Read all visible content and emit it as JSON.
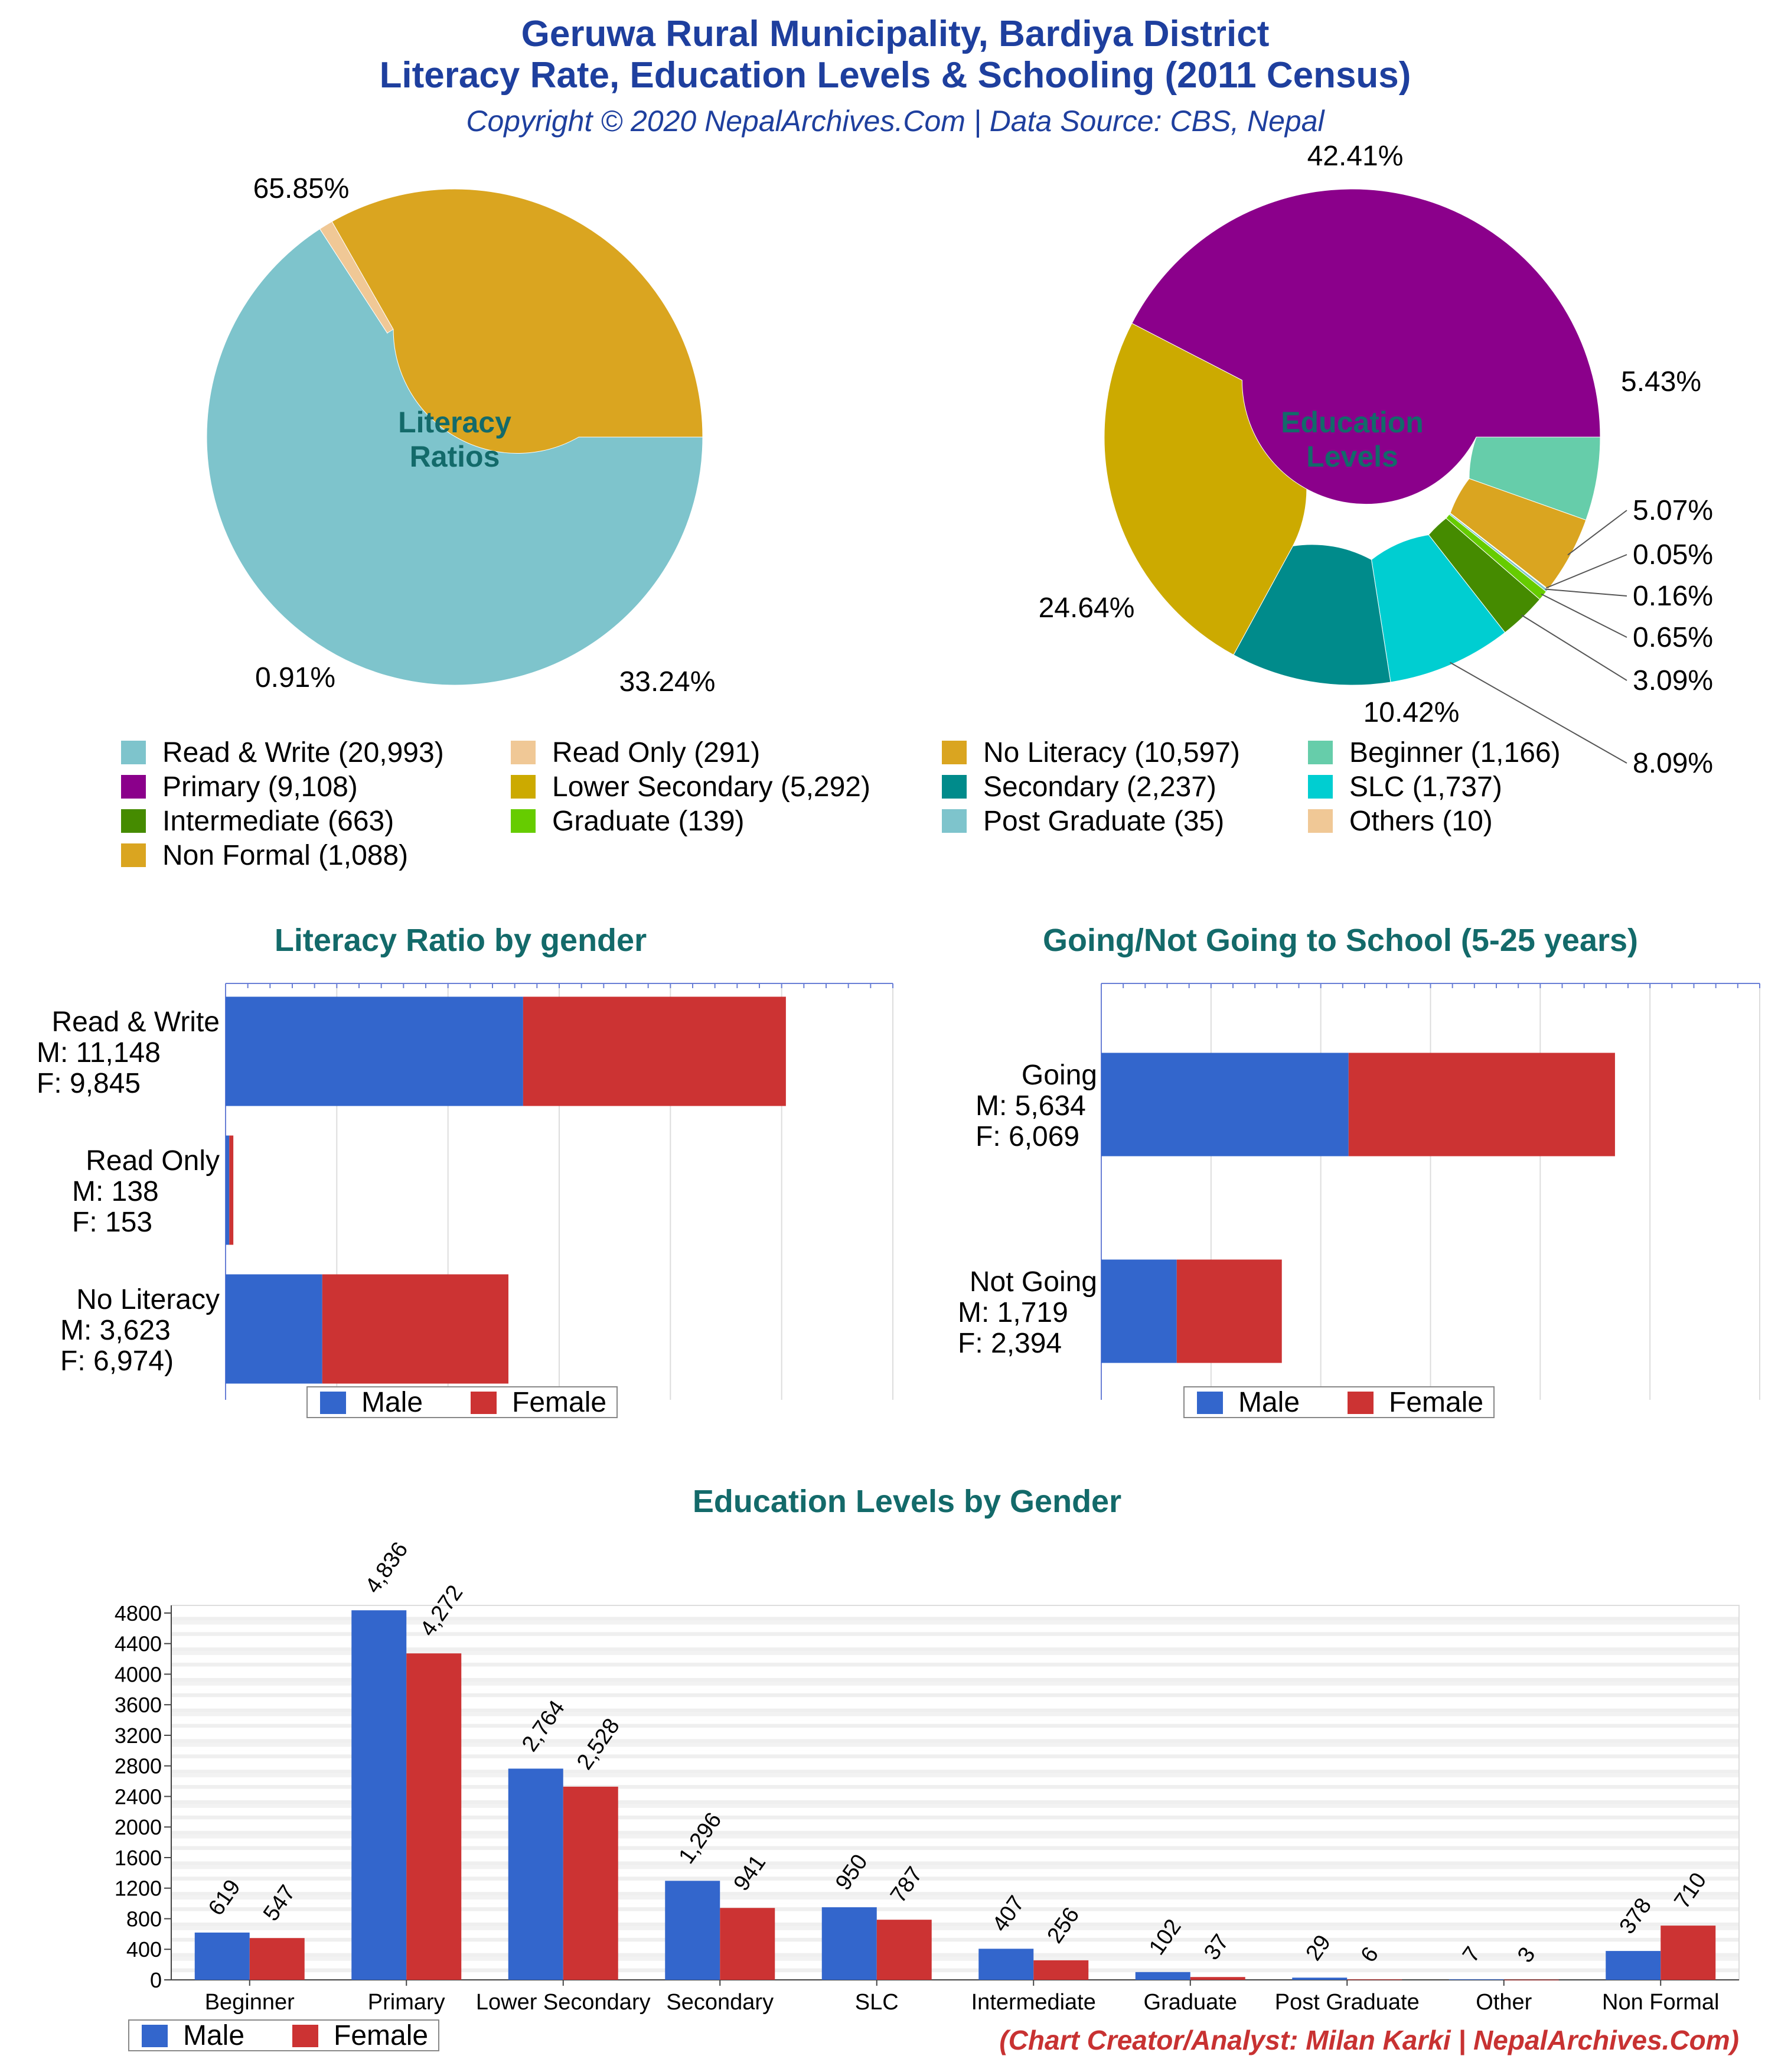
{
  "header": {
    "title_line1": "Geruwa Rural Municipality, Bardiya District",
    "title_line2": "Literacy Rate, Education Levels & Schooling (2011 Census)",
    "subtitle": "Copyright © 2020 NepalArchives.Com | Data Source: CBS, Nepal"
  },
  "footer": {
    "credit": "(Chart Creator/Analyst: Milan Karki | NepalArchives.Com)"
  },
  "colors": {
    "male": "#3366cc",
    "female": "#cc3333",
    "title": "#1e3f9e",
    "section": "#136a6a"
  },
  "chart_data": [
    {
      "type": "pie",
      "center_label": [
        "Literacy",
        "Ratios"
      ],
      "slices": [
        {
          "label": "Read & Write",
          "value": 20993,
          "percent_label": "65.85%",
          "color": "#7ec4cc"
        },
        {
          "label": "Read Only",
          "value": 291,
          "percent_label": "0.91%",
          "color": "#f0c896"
        },
        {
          "label": "No Literacy",
          "value": 10597,
          "percent_label": "33.24%",
          "color": "#daa520"
        }
      ]
    },
    {
      "type": "pie",
      "center_label": [
        "Education",
        "Levels"
      ],
      "slices": [
        {
          "label": "Beginner",
          "value": 1166,
          "percent_label": "5.43%",
          "color": "#66cdaa"
        },
        {
          "label": "Non Formal",
          "value": 1088,
          "percent_label": "5.07%",
          "color": "#daa520"
        },
        {
          "label": "Others",
          "value": 10,
          "percent_label": "0.05%",
          "color": "#f0c896"
        },
        {
          "label": "Post Graduate",
          "value": 35,
          "percent_label": "0.16%",
          "color": "#7ec4cc"
        },
        {
          "label": "Graduate",
          "value": 139,
          "percent_label": "0.65%",
          "color": "#66cc00"
        },
        {
          "label": "Intermediate",
          "value": 663,
          "percent_label": "3.09%",
          "color": "#458b00"
        },
        {
          "label": "SLC",
          "value": 1737,
          "percent_label": "8.09%",
          "color": "#00ced1"
        },
        {
          "label": "Secondary",
          "value": 2237,
          "percent_label": "10.42%",
          "color": "#008b8b"
        },
        {
          "label": "Lower Secondary",
          "value": 5292,
          "percent_label": "24.64%",
          "color": "#ccaa00"
        },
        {
          "label": "Primary",
          "value": 9108,
          "percent_label": "42.41%",
          "color": "#8b008b"
        }
      ]
    },
    {
      "type": "bar",
      "orientation": "horizontal-stacked",
      "title": "Literacy Ratio by gender",
      "categories": [
        "Read & Write",
        "Read Only",
        "No Literacy"
      ],
      "category_labels": [
        [
          "Read & Write",
          "M: 11,148",
          "F: 9,845"
        ],
        [
          "Read Only",
          "M: 138",
          "F: 153"
        ],
        [
          "No Literacy",
          "M: 3,623",
          "F: 6,974)"
        ]
      ],
      "series": [
        {
          "name": "Male",
          "values": [
            11148,
            138,
            3623
          ]
        },
        {
          "name": "Female",
          "values": [
            9845,
            153,
            6974
          ]
        }
      ],
      "xlim": [
        0,
        25000
      ],
      "legend": "bottom"
    },
    {
      "type": "bar",
      "orientation": "horizontal-stacked",
      "title": "Going/Not Going to School (5-25 years)",
      "categories": [
        "Going",
        "Not Going"
      ],
      "category_labels": [
        [
          "Going",
          "M: 5,634",
          "F: 6,069"
        ],
        [
          "Not Going",
          "M: 1,719",
          "F: 2,394"
        ]
      ],
      "series": [
        {
          "name": "Male",
          "values": [
            5634,
            1719
          ]
        },
        {
          "name": "Female",
          "values": [
            6069,
            2394
          ]
        }
      ],
      "xlim": [
        0,
        15000
      ],
      "legend": "bottom"
    },
    {
      "type": "bar",
      "orientation": "vertical-grouped",
      "title": "Education Levels by Gender",
      "categories": [
        "Beginner",
        "Primary",
        "Lower Secondary",
        "Secondary",
        "SLC",
        "Intermediate",
        "Graduate",
        "Post Graduate",
        "Other",
        "Non Formal"
      ],
      "series": [
        {
          "name": "Male",
          "values": [
            619,
            4836,
            2764,
            1296,
            950,
            407,
            102,
            29,
            7,
            378
          ],
          "labels": [
            "619",
            "4,836",
            "2,764",
            "1,296",
            "950",
            "407",
            "102",
            "29",
            "7",
            "378"
          ]
        },
        {
          "name": "Female",
          "values": [
            547,
            4272,
            2528,
            941,
            787,
            256,
            37,
            6,
            3,
            710
          ],
          "labels": [
            "547",
            "4,272",
            "2,528",
            "941",
            "787",
            "256",
            "37",
            "6",
            "3",
            "710"
          ]
        }
      ],
      "yticks": [
        "0",
        "400",
        "800",
        "1200",
        "1600",
        "2000",
        "2400",
        "2800",
        "3200",
        "3600",
        "4000",
        "4400",
        "4800"
      ],
      "ylim": [
        0,
        4900
      ],
      "grid": true,
      "legend": "bottom-left"
    }
  ],
  "legend": {
    "items": [
      {
        "label": "Read & Write (20,993)",
        "color": "#7ec4cc"
      },
      {
        "label": "Read Only (291)",
        "color": "#f0c896"
      },
      {
        "label": "No Literacy (10,597)",
        "color": "#daa520"
      },
      {
        "label": "Beginner (1,166)",
        "color": "#66cdaa"
      },
      {
        "label": "Primary (9,108)",
        "color": "#8b008b"
      },
      {
        "label": "Lower Secondary (5,292)",
        "color": "#ccaa00"
      },
      {
        "label": "Secondary (2,237)",
        "color": "#008b8b"
      },
      {
        "label": "SLC (1,737)",
        "color": "#00ced1"
      },
      {
        "label": "Intermediate (663)",
        "color": "#458b00"
      },
      {
        "label": "Graduate (139)",
        "color": "#66cc00"
      },
      {
        "label": "Post Graduate (35)",
        "color": "#7ec4cc"
      },
      {
        "label": "Others (10)",
        "color": "#f0c896"
      },
      {
        "label": "Non Formal (1,088)",
        "color": "#daa520"
      }
    ]
  }
}
